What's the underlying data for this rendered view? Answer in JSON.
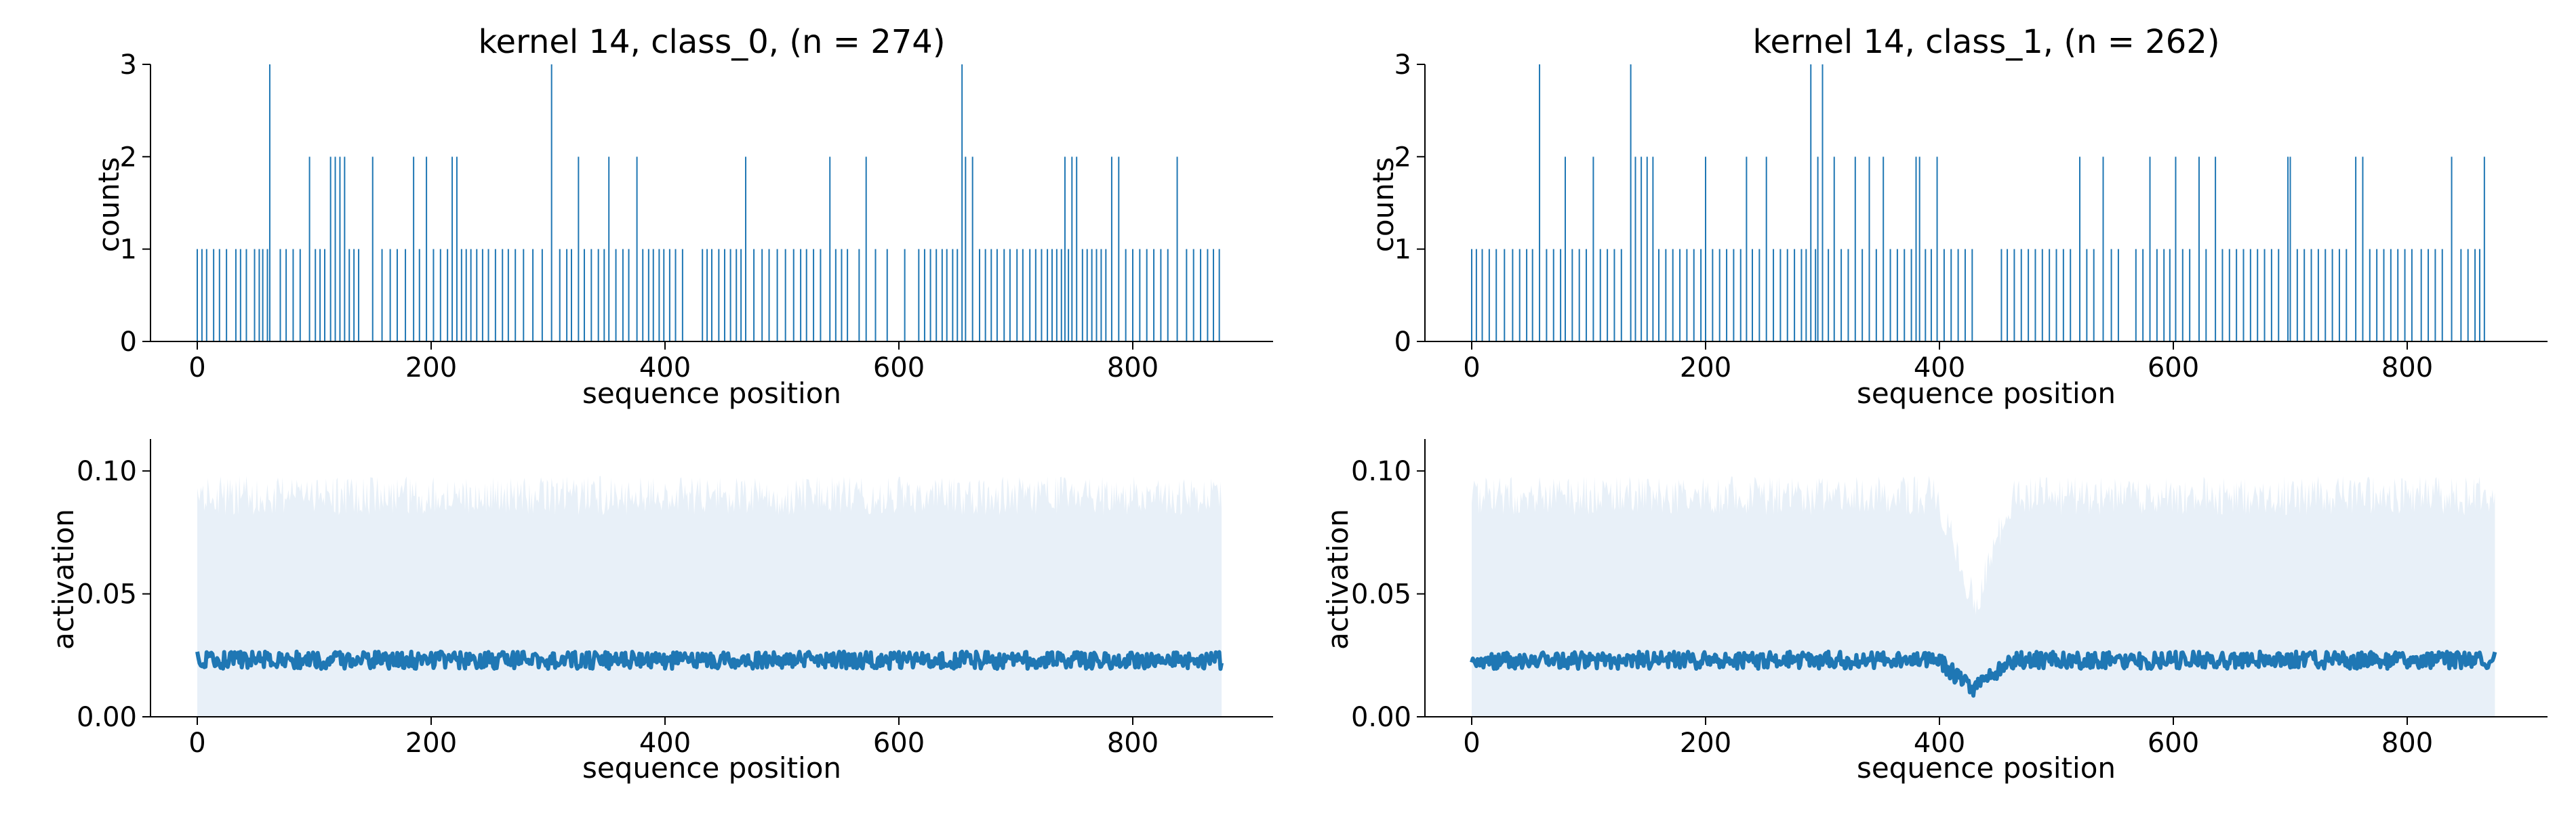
{
  "chart_data": [
    {
      "id": "hist-class0",
      "type": "bar",
      "title": "kernel 14, class_0, (n = 274)",
      "xlabel": "sequence position",
      "ylabel": "counts",
      "xlim": [
        -40,
        920
      ],
      "ylim": [
        0,
        3
      ],
      "xticks": [
        0,
        200,
        400,
        600,
        800
      ],
      "yticks": [
        0,
        1,
        2,
        3
      ],
      "grid": false,
      "color": "#1f77b4",
      "count_3_positions": [
        62,
        303,
        654
      ],
      "count_2_positions": [
        96,
        114,
        118,
        122,
        126,
        150,
        185,
        196,
        218,
        222,
        326,
        352,
        376,
        469,
        541,
        572,
        657,
        663,
        742,
        748,
        752,
        782,
        788,
        838
      ],
      "count_1_positions": [
        0,
        4,
        8,
        14,
        19,
        25,
        33,
        37,
        42,
        49,
        53,
        56,
        60,
        71,
        76,
        82,
        88,
        101,
        105,
        109,
        130,
        134,
        138,
        158,
        165,
        171,
        178,
        190,
        202,
        208,
        214,
        226,
        230,
        234,
        239,
        244,
        249,
        255,
        261,
        266,
        272,
        279,
        287,
        295,
        310,
        316,
        320,
        331,
        337,
        343,
        348,
        358,
        364,
        369,
        381,
        386,
        390,
        395,
        399,
        404,
        409,
        415,
        432,
        436,
        440,
        446,
        451,
        456,
        461,
        465,
        476,
        483,
        489,
        496,
        503,
        510,
        516,
        521,
        527,
        533,
        546,
        551,
        556,
        566,
        580,
        590,
        605,
        617,
        622,
        627,
        632,
        637,
        641,
        646,
        650,
        669,
        674,
        679,
        684,
        690,
        695,
        701,
        706,
        712,
        717,
        722,
        727,
        731,
        735,
        739,
        745,
        757,
        761,
        765,
        769,
        773,
        777,
        794,
        800,
        806,
        812,
        818,
        824,
        830,
        846,
        852,
        858,
        864,
        869,
        874
      ]
    },
    {
      "id": "hist-class1",
      "type": "bar",
      "title": "kernel 14, class_1, (n = 262)",
      "xlabel": "sequence position",
      "ylabel": "counts",
      "xlim": [
        -40,
        920
      ],
      "ylim": [
        0,
        3
      ],
      "xticks": [
        0,
        200,
        400,
        600,
        800
      ],
      "yticks": [
        0,
        1,
        2,
        3
      ],
      "grid": false,
      "color": "#1f77b4",
      "count_3_positions": [
        58,
        136,
        290,
        300
      ],
      "count_2_positions": [
        80,
        104,
        140,
        145,
        150,
        155,
        200,
        235,
        252,
        296,
        310,
        328,
        340,
        352,
        380,
        383,
        398,
        520,
        540,
        580,
        602,
        622,
        636,
        698,
        700,
        756,
        762,
        838,
        866
      ],
      "count_1_positions": [
        0,
        4,
        9,
        15,
        21,
        28,
        35,
        41,
        47,
        52,
        64,
        70,
        76,
        86,
        92,
        98,
        110,
        116,
        122,
        128,
        160,
        166,
        172,
        178,
        184,
        190,
        196,
        206,
        212,
        218,
        224,
        230,
        240,
        246,
        258,
        264,
        270,
        276,
        282,
        286,
        294,
        305,
        316,
        322,
        334,
        346,
        358,
        364,
        370,
        376,
        388,
        393,
        404,
        410,
        416,
        422,
        428,
        453,
        458,
        464,
        470,
        476,
        482,
        488,
        494,
        500,
        506,
        512,
        526,
        532,
        547,
        553,
        568,
        574,
        586,
        592,
        597,
        608,
        614,
        628,
        642,
        648,
        654,
        660,
        666,
        672,
        678,
        684,
        690,
        706,
        712,
        718,
        724,
        730,
        736,
        742,
        748,
        768,
        774,
        780,
        786,
        792,
        798,
        804,
        812,
        818,
        824,
        830,
        846,
        852,
        858,
        862
      ]
    },
    {
      "id": "act-class0",
      "type": "line",
      "xlabel": "sequence position",
      "ylabel": "activation",
      "xlim": [
        -40,
        920
      ],
      "ylim": [
        0,
        0.113
      ],
      "xticks": [
        0,
        200,
        400,
        600,
        800
      ],
      "yticks": [
        0.0,
        0.05,
        0.1
      ],
      "ytick_labels": [
        "0.00",
        "0.05",
        "0.10"
      ],
      "grid": false,
      "color": "#1f77b4",
      "band_color": "#e8f0f8",
      "x_range": [
        0,
        876
      ],
      "mean_level": 0.023,
      "mean_noise": 0.0035,
      "band_upper_level": 0.09,
      "band_upper_noise": 0.008,
      "dip": null
    },
    {
      "id": "act-class1",
      "type": "line",
      "xlabel": "sequence position",
      "ylabel": "activation",
      "xlim": [
        -40,
        920
      ],
      "ylim": [
        0,
        0.113
      ],
      "xticks": [
        0,
        200,
        400,
        600,
        800
      ],
      "yticks": [
        0.0,
        0.05,
        0.1
      ],
      "ytick_labels": [
        "0.00",
        "0.05",
        "0.10"
      ],
      "grid": false,
      "color": "#1f77b4",
      "band_color": "#e8f0f8",
      "x_range": [
        0,
        875
      ],
      "mean_level": 0.023,
      "mean_noise": 0.0035,
      "band_upper_level": 0.09,
      "band_upper_noise": 0.008,
      "dip": {
        "start": 400,
        "end": 465,
        "center": 430,
        "mean_min": 0.011,
        "band_min": 0.045
      }
    }
  ]
}
